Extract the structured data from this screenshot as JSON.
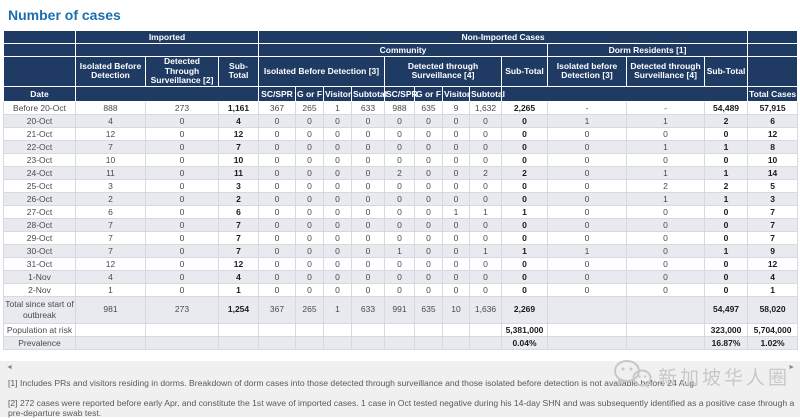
{
  "title": "Number of cases",
  "header": {
    "date": "Date",
    "imported": "Imported",
    "non_imported": "Non-Imported Cases",
    "community": "Community",
    "dorm": "Dorm Residents [1]",
    "imp_isolated": "Isolated Before Detection",
    "imp_detected": "Detected Through Surveillance [2]",
    "imp_subtotal": "Sub-Total",
    "com_isolated": "Isolated Before Detection [3]",
    "com_detected": "Detected through Surveillance [4]",
    "com_subtotal": "Sub-Total",
    "dorm_isolated": "Isolated before Detection [3]",
    "dorm_detected": "Detected through Surveillance [4]",
    "dorm_subtotal": "Sub-Total",
    "sc_spr": "SC/SPR",
    "g_or_f": "G or F",
    "visitor": "Visitor",
    "subtotal": "Subtotal",
    "total_cases": "Total Cases"
  },
  "rows": [
    {
      "date": "Before 20-Oct",
      "cells": [
        "888",
        "273",
        "1,161",
        "367",
        "265",
        "1",
        "633",
        "988",
        "635",
        "9",
        "1,632",
        "2,265",
        "-",
        "-",
        "54,489",
        "57,915"
      ]
    },
    {
      "date": "20-Oct",
      "cells": [
        "4",
        "0",
        "4",
        "0",
        "0",
        "0",
        "0",
        "0",
        "0",
        "0",
        "0",
        "0",
        "1",
        "1",
        "2",
        "6"
      ]
    },
    {
      "date": "21-Oct",
      "cells": [
        "12",
        "0",
        "12",
        "0",
        "0",
        "0",
        "0",
        "0",
        "0",
        "0",
        "0",
        "0",
        "0",
        "0",
        "0",
        "12"
      ]
    },
    {
      "date": "22-Oct",
      "cells": [
        "7",
        "0",
        "7",
        "0",
        "0",
        "0",
        "0",
        "0",
        "0",
        "0",
        "0",
        "0",
        "0",
        "1",
        "1",
        "8"
      ]
    },
    {
      "date": "23-Oct",
      "cells": [
        "10",
        "0",
        "10",
        "0",
        "0",
        "0",
        "0",
        "0",
        "0",
        "0",
        "0",
        "0",
        "0",
        "0",
        "0",
        "10"
      ]
    },
    {
      "date": "24-Oct",
      "cells": [
        "11",
        "0",
        "11",
        "0",
        "0",
        "0",
        "0",
        "2",
        "0",
        "0",
        "2",
        "2",
        "0",
        "1",
        "1",
        "14"
      ]
    },
    {
      "date": "25-Oct",
      "cells": [
        "3",
        "0",
        "3",
        "0",
        "0",
        "0",
        "0",
        "0",
        "0",
        "0",
        "0",
        "0",
        "0",
        "2",
        "2",
        "5"
      ]
    },
    {
      "date": "26-Oct",
      "cells": [
        "2",
        "0",
        "2",
        "0",
        "0",
        "0",
        "0",
        "0",
        "0",
        "0",
        "0",
        "0",
        "0",
        "1",
        "1",
        "3"
      ]
    },
    {
      "date": "27-Oct",
      "cells": [
        "6",
        "0",
        "6",
        "0",
        "0",
        "0",
        "0",
        "0",
        "0",
        "1",
        "1",
        "1",
        "0",
        "0",
        "0",
        "7"
      ]
    },
    {
      "date": "28-Oct",
      "cells": [
        "7",
        "0",
        "7",
        "0",
        "0",
        "0",
        "0",
        "0",
        "0",
        "0",
        "0",
        "0",
        "0",
        "0",
        "0",
        "7"
      ]
    },
    {
      "date": "29-Oct",
      "cells": [
        "7",
        "0",
        "7",
        "0",
        "0",
        "0",
        "0",
        "0",
        "0",
        "0",
        "0",
        "0",
        "0",
        "0",
        "0",
        "7"
      ]
    },
    {
      "date": "30-Oct",
      "cells": [
        "7",
        "0",
        "7",
        "0",
        "0",
        "0",
        "0",
        "1",
        "0",
        "0",
        "1",
        "1",
        "1",
        "0",
        "1",
        "9"
      ]
    },
    {
      "date": "31-Oct",
      "cells": [
        "12",
        "0",
        "12",
        "0",
        "0",
        "0",
        "0",
        "0",
        "0",
        "0",
        "0",
        "0",
        "0",
        "0",
        "0",
        "12"
      ]
    },
    {
      "date": "1-Nov",
      "cells": [
        "4",
        "0",
        "4",
        "0",
        "0",
        "0",
        "0",
        "0",
        "0",
        "0",
        "0",
        "0",
        "0",
        "0",
        "0",
        "4"
      ]
    },
    {
      "date": "2-Nov",
      "cells": [
        "1",
        "0",
        "1",
        "0",
        "0",
        "0",
        "0",
        "0",
        "0",
        "0",
        "0",
        "0",
        "0",
        "0",
        "0",
        "1"
      ]
    }
  ],
  "summary_rows": [
    {
      "date": "Total since start of outbreak",
      "cells": [
        "981",
        "273",
        "1,254",
        "367",
        "265",
        "1",
        "633",
        "991",
        "635",
        "10",
        "1,636",
        "2,269",
        "",
        "",
        "54,497",
        "58,020"
      ]
    },
    {
      "date": "Population at risk",
      "cells": [
        "",
        "",
        "",
        "",
        "",
        "",
        "",
        "",
        "",
        "",
        "",
        "5,381,000",
        "",
        "",
        "323,000",
        "5,704,000"
      ]
    },
    {
      "date": "Prevalence",
      "cells": [
        "",
        "",
        "",
        "",
        "",
        "",
        "",
        "",
        "",
        "",
        "",
        "0.04%",
        "",
        "",
        "16.87%",
        "1.02%"
      ]
    }
  ],
  "footnotes": [
    "[1] Includes PRs and visitors residing in dorms. Breakdown of dorm cases into those detected through surveillance and those isolated before detection is not available before 24 Aug.",
    "[2] 272 cases were reported before early Apr, and constitute the 1st wave of imported cases. 1 case in Oct tested negative during his 14-day SHN and was subsequently identified as a positive case through a pre-departure swab test."
  ],
  "scrollbar": {
    "left_arrow": "◄",
    "right_arrow": "►"
  },
  "watermark_text": "新加坡华人圈",
  "colors": {
    "header_bg": "#1f3a63",
    "title_blue": "#1b6fb0",
    "row_stripe": "#e9eaef",
    "watermark_gray": "#c8c8c8"
  }
}
